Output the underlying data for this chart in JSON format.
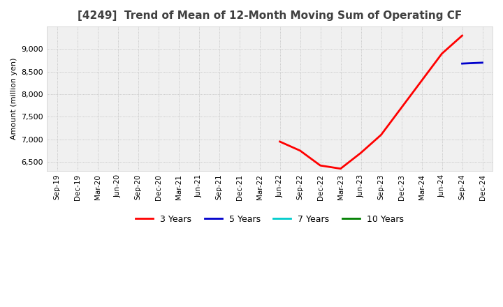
{
  "title": "[4249]  Trend of Mean of 12-Month Moving Sum of Operating CF",
  "ylabel": "Amount (million yen)",
  "background_color": "#ffffff",
  "plot_background": "#f0f0f0",
  "grid_color": "#aaaaaa",
  "x_labels": [
    "Sep-19",
    "Dec-19",
    "Mar-20",
    "Jun-20",
    "Sep-20",
    "Dec-20",
    "Mar-21",
    "Jun-21",
    "Sep-21",
    "Dec-21",
    "Mar-22",
    "Jun-22",
    "Sep-22",
    "Dec-22",
    "Mar-23",
    "Jun-23",
    "Sep-23",
    "Dec-23",
    "Mar-24",
    "Jun-24",
    "Sep-24",
    "Dec-24"
  ],
  "ylim": [
    6300,
    9500
  ],
  "yticks": [
    6500,
    7000,
    7500,
    8000,
    8500,
    9000
  ],
  "series": {
    "3years": {
      "color": "#ff0000",
      "linewidth": 2.0,
      "points": [
        [
          11,
          6950
        ],
        [
          12,
          6750
        ],
        [
          13,
          6420
        ],
        [
          14,
          6350
        ],
        [
          15,
          6700
        ],
        [
          16,
          7100
        ],
        [
          17,
          7700
        ],
        [
          18,
          8300
        ],
        [
          19,
          8900
        ],
        [
          20,
          9300
        ]
      ]
    },
    "5years": {
      "color": "#0000cc",
      "linewidth": 2.0,
      "points": [
        [
          20,
          8680
        ],
        [
          21,
          8700
        ]
      ]
    },
    "7years": {
      "color": "#00cccc",
      "linewidth": 2.0,
      "points": []
    },
    "10years": {
      "color": "#008000",
      "linewidth": 2.0,
      "points": []
    }
  },
  "legend": {
    "labels": [
      "3 Years",
      "5 Years",
      "7 Years",
      "10 Years"
    ],
    "colors": [
      "#ff0000",
      "#0000cc",
      "#00cccc",
      "#008000"
    ]
  }
}
